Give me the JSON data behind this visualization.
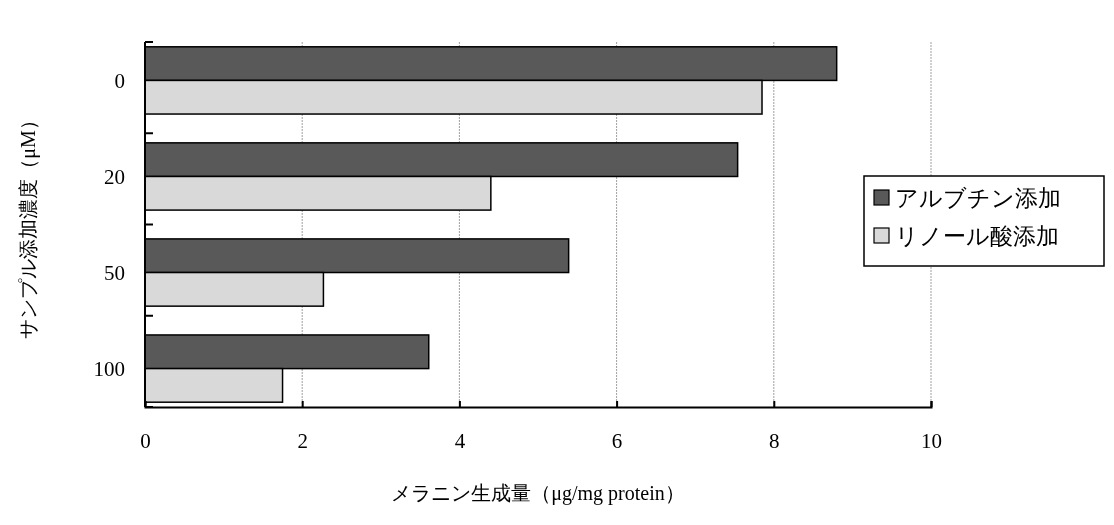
{
  "chart_data": {
    "type": "bar",
    "orientation": "horizontal",
    "xlabel": "メラニン生成量（μg/mg protein）",
    "ylabel": "サンプル添加濃度（μM）",
    "categories": [
      "0",
      "20",
      "50",
      "100"
    ],
    "series": [
      {
        "name": "アルブチン添加",
        "color": "#595959",
        "values": [
          8.8,
          7.54,
          5.39,
          3.61
        ]
      },
      {
        "name": "リノール酸添加",
        "color": "#d9d9d9",
        "values": [
          7.85,
          4.4,
          2.27,
          1.75
        ]
      }
    ],
    "xlim": [
      0,
      10
    ],
    "xticks": [
      0,
      2,
      4,
      6,
      8,
      10
    ],
    "grid": "x",
    "legend": "right"
  }
}
